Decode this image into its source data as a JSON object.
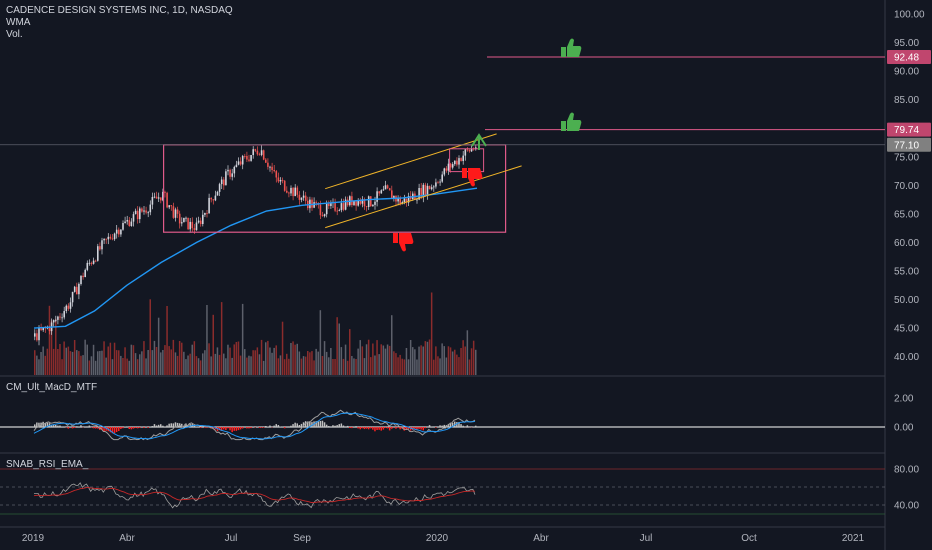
{
  "header": {
    "title": "CADENCE DESIGN SYSTEMS INC, 1D, NASDAQ",
    "indicator_1": "WMA",
    "indicator_2": "Vol."
  },
  "panes": {
    "macd_label": "CM_Ult_MacD_MTF",
    "rsi_label": "SNAB_RSI_EMA_"
  },
  "colors": {
    "background": "#131722",
    "up_candle": "#d1d4dc",
    "down_candle": "#ef5350",
    "wma": "#2196f3",
    "box": "#e05a8a",
    "channel": "#f0b429",
    "level_tag": "#c0466e",
    "last_price_tag": "#808080",
    "thumb_up": "#4caf50",
    "thumb_down": "#ff1a1a"
  },
  "chart_data": [
    {
      "type": "candlestick",
      "title": "CADENCE DESIGN SYSTEMS INC, 1D, NASDAQ",
      "ylim": [
        35,
        102
      ],
      "y_ticks": [
        "100.00",
        "95.00",
        "90.00",
        "85.00",
        "80.00",
        "75.00",
        "70.00",
        "65.00",
        "60.00",
        "55.00",
        "50.00",
        "45.00",
        "40.00"
      ],
      "x_ticks": [
        "2019",
        "Abr",
        "Jul",
        "Sep",
        "2020",
        "Abr",
        "Jul",
        "Oct",
        "2021"
      ],
      "last_price": 77.1,
      "levels": [
        92.48,
        79.74
      ],
      "price_series": [
        {
          "date": "2019-01-02",
          "price": 43.5
        },
        {
          "date": "2019-01-18",
          "price": 45.5
        },
        {
          "date": "2019-02-05",
          "price": 49.5
        },
        {
          "date": "2019-02-20",
          "price": 55.5
        },
        {
          "date": "2019-03-06",
          "price": 59.0
        },
        {
          "date": "2019-03-20",
          "price": 62.0
        },
        {
          "date": "2019-04-03",
          "price": 64.0
        },
        {
          "date": "2019-04-17",
          "price": 66.0
        },
        {
          "date": "2019-05-01",
          "price": 68.5
        },
        {
          "date": "2019-05-15",
          "price": 64.0
        },
        {
          "date": "2019-05-31",
          "price": 62.5
        },
        {
          "date": "2019-06-14",
          "price": 68.0
        },
        {
          "date": "2019-06-28",
          "price": 72.0
        },
        {
          "date": "2019-07-12",
          "price": 74.5
        },
        {
          "date": "2019-07-26",
          "price": 76.5
        },
        {
          "date": "2019-08-09",
          "price": 71.0
        },
        {
          "date": "2019-08-23",
          "price": 69.0
        },
        {
          "date": "2019-09-06",
          "price": 67.0
        },
        {
          "date": "2019-09-20",
          "price": 65.5
        },
        {
          "date": "2019-10-04",
          "price": 66.5
        },
        {
          "date": "2019-10-18",
          "price": 67.5
        },
        {
          "date": "2019-11-01",
          "price": 67.0
        },
        {
          "date": "2019-11-15",
          "price": 69.0
        },
        {
          "date": "2019-11-29",
          "price": 67.0
        },
        {
          "date": "2019-12-13",
          "price": 68.5
        },
        {
          "date": "2019-12-27",
          "price": 70.0
        },
        {
          "date": "2020-01-10",
          "price": 73.0
        },
        {
          "date": "2020-01-24",
          "price": 75.5
        },
        {
          "date": "2020-02-05",
          "price": 77.1
        }
      ],
      "wma_series": [
        {
          "date": "2019-01-02",
          "price": 45.0
        },
        {
          "date": "2019-02-01",
          "price": 45.3
        },
        {
          "date": "2019-03-01",
          "price": 48.0
        },
        {
          "date": "2019-04-01",
          "price": 52.5
        },
        {
          "date": "2019-05-01",
          "price": 56.5
        },
        {
          "date": "2019-06-01",
          "price": 60.0
        },
        {
          "date": "2019-07-01",
          "price": 63.0
        },
        {
          "date": "2019-08-01",
          "price": 65.5
        },
        {
          "date": "2019-09-01",
          "price": 66.5
        },
        {
          "date": "2019-10-01",
          "price": 67.0
        },
        {
          "date": "2019-11-01",
          "price": 67.5
        },
        {
          "date": "2019-12-01",
          "price": 67.8
        },
        {
          "date": "2020-01-01",
          "price": 68.5
        },
        {
          "date": "2020-02-05",
          "price": 69.5
        }
      ]
    },
    {
      "type": "line",
      "title": "CM_Ult_MacD_MTF",
      "y_ticks": [
        "2.00",
        "0.00"
      ]
    },
    {
      "type": "line",
      "title": "SNAB_RSI_EMA_",
      "y_ticks": [
        "80.00",
        "40.00"
      ]
    }
  ]
}
